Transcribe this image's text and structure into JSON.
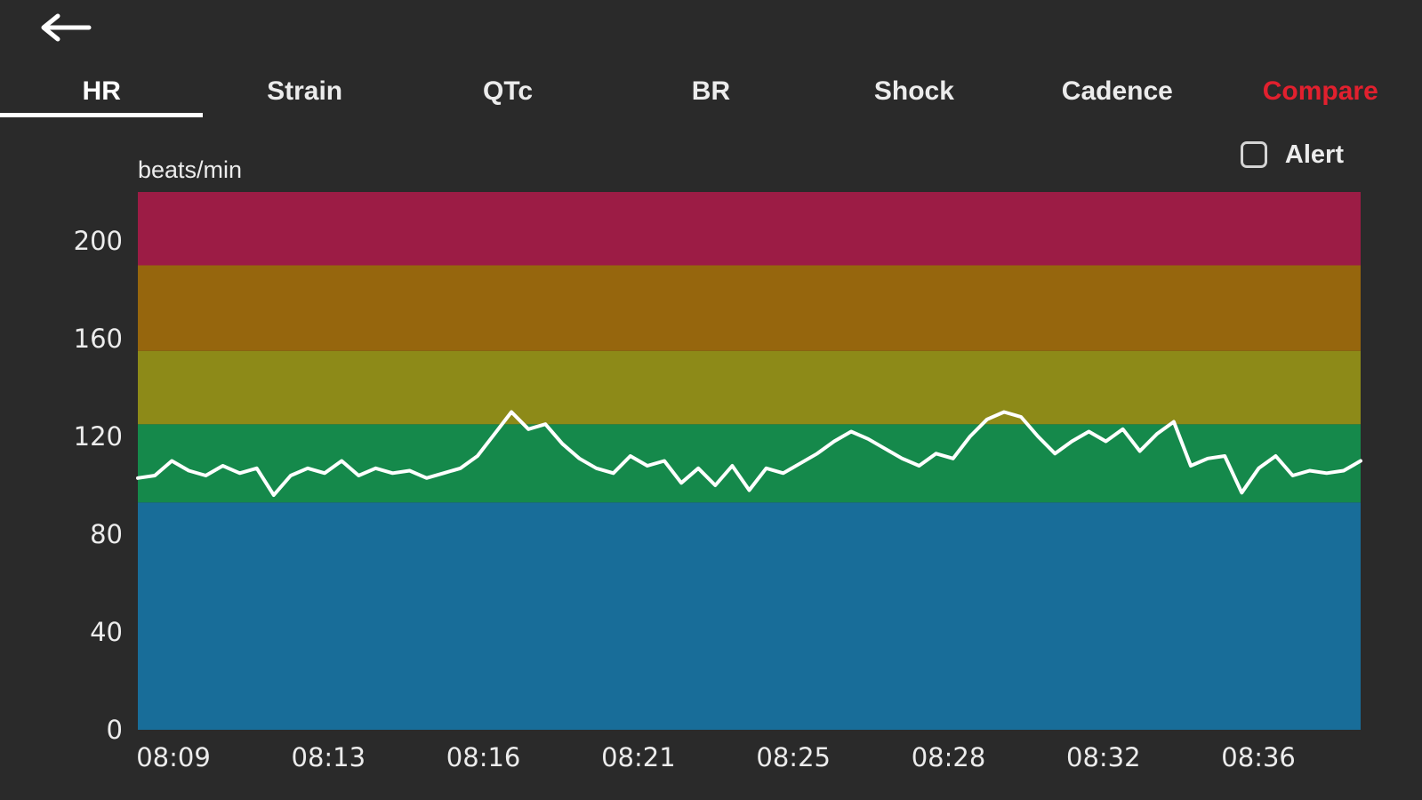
{
  "header": {
    "back_icon": "left-arrow"
  },
  "tabs": [
    {
      "label": "HR",
      "active": true
    },
    {
      "label": "Strain",
      "active": false
    },
    {
      "label": "QTc",
      "active": false
    },
    {
      "label": "BR",
      "active": false
    },
    {
      "label": "Shock",
      "active": false
    },
    {
      "label": "Cadence",
      "active": false
    },
    {
      "label": "Compare",
      "active": false,
      "accent": true
    }
  ],
  "alert_control": {
    "label": "Alert",
    "checked": false
  },
  "colors": {
    "bg": "#2a2a2a",
    "text": "#ececec",
    "accent_red": "#e2202e",
    "line": "#ffffff"
  },
  "chart_data": {
    "type": "line",
    "title": "",
    "xlabel": "",
    "ylabel": "beats/min",
    "ylim": [
      0,
      220
    ],
    "yticks": [
      0,
      40,
      80,
      120,
      160,
      200
    ],
    "xticklabels": [
      "08:09",
      "08:13",
      "08:16",
      "08:21",
      "08:25",
      "08:28",
      "08:32",
      "08:36"
    ],
    "grid": false,
    "legend": "none",
    "zones": [
      {
        "name": "blue",
        "from": 0,
        "to": 93,
        "color": "#186d99"
      },
      {
        "name": "green",
        "from": 93,
        "to": 125,
        "color": "#15894b"
      },
      {
        "name": "yellow",
        "from": 125,
        "to": 155,
        "color": "#8d8a18"
      },
      {
        "name": "orange",
        "from": 155,
        "to": 190,
        "color": "#96660d"
      },
      {
        "name": "red",
        "from": 190,
        "to": 220,
        "color": "#9c1c45"
      }
    ],
    "series": [
      {
        "name": "HR",
        "color": "#ffffff",
        "values": [
          103,
          104,
          110,
          106,
          104,
          108,
          105,
          107,
          96,
          104,
          107,
          105,
          110,
          104,
          107,
          105,
          106,
          103,
          105,
          107,
          112,
          121,
          130,
          123,
          125,
          117,
          111,
          107,
          105,
          112,
          108,
          110,
          101,
          107,
          100,
          108,
          98,
          107,
          105,
          109,
          113,
          118,
          122,
          119,
          115,
          111,
          108,
          113,
          111,
          120,
          127,
          130,
          128,
          120,
          113,
          118,
          122,
          118,
          123,
          114,
          121,
          126,
          108,
          111,
          112,
          97,
          107,
          112,
          104,
          106,
          105,
          106,
          110
        ]
      }
    ]
  }
}
